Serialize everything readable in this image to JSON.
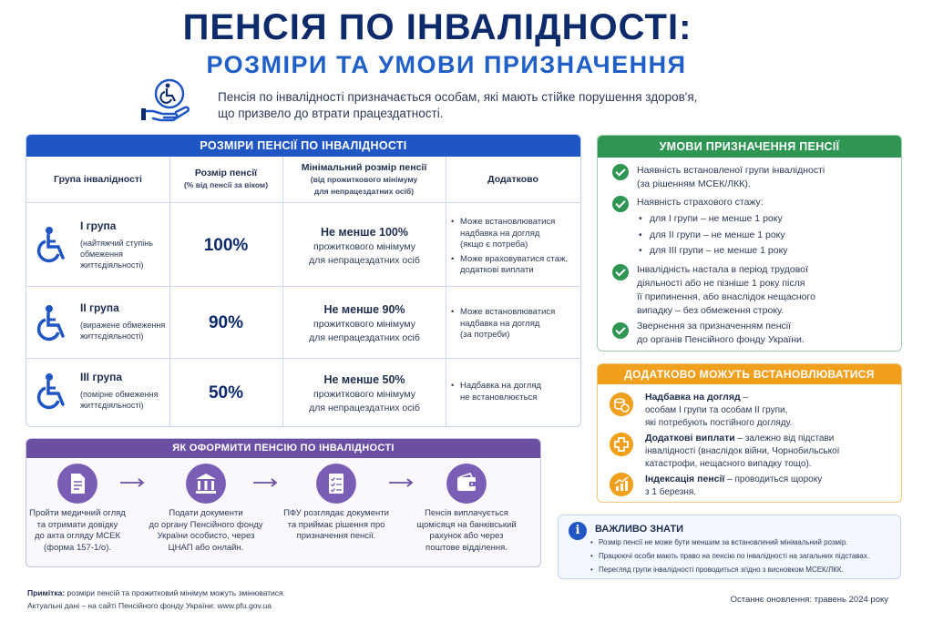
{
  "header": {
    "title": "ПЕНСІЯ ПО ІНВАЛІДНОСТІ:",
    "subtitle": "РОЗМІРИ ТА УМОВИ ПРИЗНАЧЕННЯ",
    "intro_line1": "Пенсія по інвалідності призначається особам, які мають стійке порушення здоров'я,",
    "intro_line2": "що призвело до втрати працездатності."
  },
  "sizes": {
    "heading": "РОЗМІРИ ПЕНСІЇ ПО ІНВАЛІДНОСТІ",
    "col_group": "Група інвалідності",
    "col_size": "Розмір пенсії",
    "col_size_note": "(% від пенсії за віком)",
    "col_min": "Мінімальний розмір пенсії",
    "col_min_note1": "(від прожиткового мінімуму",
    "col_min_note2": "для непрацездатних осіб)",
    "col_extra": "Додатково",
    "rows": [
      {
        "name": "І група",
        "desc1": "(найтяжчий ступінь",
        "desc2": "обмеження",
        "desc3": "життєдіяльності)",
        "percent": "100%",
        "min_bold": "Не менше 100%",
        "min1": "прожиткового мінімуму",
        "min2": "для непрацездатних осіб",
        "extra1a": "Може встановлюватися",
        "extra1b": "надбавка на догляд",
        "extra1c": "(якщо є потреба)",
        "extra2a": "Може враховуватися стаж,",
        "extra2b": "додаткові виплати"
      },
      {
        "name": "ІІ група",
        "desc1": "(виражене обмеження",
        "desc2": "життєдіяльності)",
        "percent": "90%",
        "min_bold": "Не менше 90%",
        "min1": "прожиткового мінімуму",
        "min2": "для непрацездатних осіб",
        "extra1a": "Може встановлюватися",
        "extra1b": "надбавка на догляд",
        "extra1c": "(за потреби)"
      },
      {
        "name": "ІІІ група",
        "desc1": "(помірне обмеження",
        "desc2": "життєдіяльності)",
        "percent": "50%",
        "min_bold": "Не менше 50%",
        "min1": "прожиткового мінімуму",
        "min2": "для непрацездатних осіб",
        "extra1a": "Надбавка на догляд",
        "extra1b": "не встановлюється"
      }
    ]
  },
  "conditions": {
    "heading": "УМОВИ ПРИЗНАЧЕННЯ ПЕНСІЇ",
    "c1a": "Наявність встановленої групи інвалідності",
    "c1b": "(за рішенням МСЕК/ЛКК).",
    "c2": "Наявність страхового стажу:",
    "c2_items": [
      "для І групи – не менше 1 року",
      "для ІІ групи – не менше 1 року",
      "для ІІІ групи – не менше 1 року"
    ],
    "c3a": "Інвалідність настала в період трудової",
    "c3b": "діяльності або не пізніше 1 року після",
    "c3c": "її припинення, або внаслідок нещасного",
    "c3d": "випадку – без обмеження строку.",
    "c4a": "Звернення за призначенням пенсії",
    "c4b": "до органів Пенсійного фонду України."
  },
  "additional": {
    "heading": "ДОДАТКОВО МОЖУТЬ ВСТАНОВЛЮВАТИСЯ",
    "a1_title": "Надбавка на догляд",
    "a1_dash": " –",
    "a1_l1": "особам І групи та особам ІІ групи,",
    "a1_l2": "які потребують постійного догляду.",
    "a2_title": "Додаткові виплати",
    "a2_rest": " – залежно від підстави",
    "a2_l1": "інвалідності (внаслідок війни, Чорнобильської",
    "a2_l2": "катастрофи, нещасного випадку тощо).",
    "a3_title": "Індексація пенсії",
    "a3_rest": " – проводиться щороку",
    "a3_l1": "з 1 березня."
  },
  "important": {
    "title": "ВАЖЛИВО ЗНАТИ",
    "items": [
      "Розмір пенсії не може бути меншим за встановлений мінімальний розмір.",
      "Працюючі особи мають право на пенсію по інвалідності на загальних підставах.",
      "Перегляд групи інвалідності проводиться згідно з висновком МСЕК/ЛКК."
    ]
  },
  "process": {
    "heading": "ЯК ОФОРМИТИ ПЕНСІЮ ПО ІНВАЛІДНОСТІ",
    "steps": [
      {
        "l1": "Пройти медичний огляд",
        "l2": "та отримати довідку",
        "l3": "до акта огляду МСЕК",
        "l4": "(форма 157-1/о)."
      },
      {
        "l1": "Подати документи",
        "l2": "до органу Пенсійного фонду",
        "l3": "України особисто, через",
        "l4": "ЦНАП або онлайн."
      },
      {
        "l1": "ПФУ розглядає документи",
        "l2": "та приймає рішення про",
        "l3": "призначення пенсії."
      },
      {
        "l1": "Пенсія виплачується",
        "l2": "щомісяця на банківський",
        "l3": "рахунок або через",
        "l4": "поштове відділення."
      }
    ]
  },
  "footer": {
    "note_label": "Примітка:",
    "note_text": " розміри пенсій та прожитковий мінімум можуть змінюватися.",
    "note_line2": "Актуальні дані – на сайті Пенсійного фонду України: www.pfu.gov.ua",
    "updated": "Останнє оновлення: травень 2024 року"
  },
  "colors": {
    "navy": "#0d2a6b",
    "blue": "#1f56c4",
    "green": "#2f9553",
    "orange": "#f0a01c",
    "purple": "#6a4fa3"
  },
  "icons": [
    "wheelchair-hand-icon",
    "wheelchair-icon",
    "check-icon",
    "coins-icon",
    "medical-cross-icon",
    "growth-chart-icon",
    "info-icon",
    "document-icon",
    "government-building-icon",
    "checklist-icon",
    "wallet-icon",
    "arrow-right-icon"
  ]
}
